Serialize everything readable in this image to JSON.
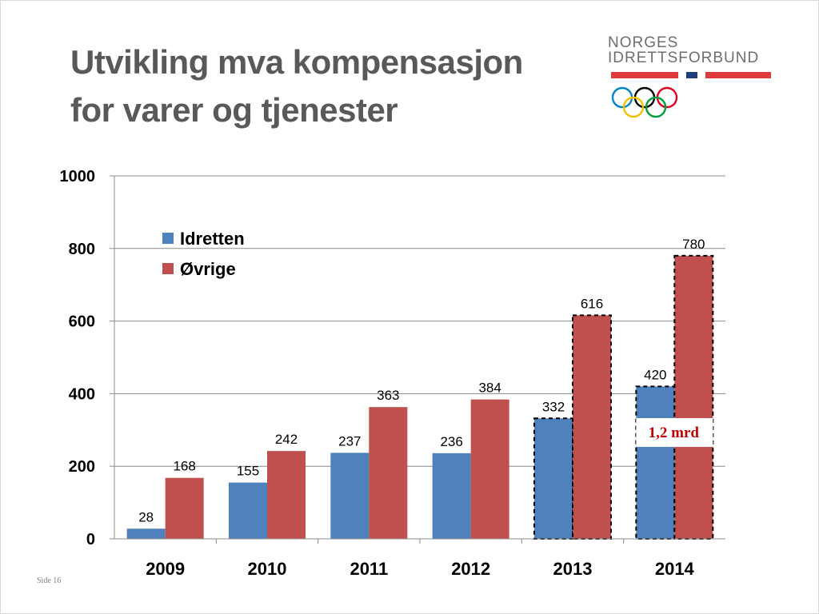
{
  "slide": {
    "title_lines": [
      "Utvikling mva kompensasjon",
      "for varer og tjenester"
    ],
    "footer": "Side 16"
  },
  "logo": {
    "line1": "NORGES",
    "line2": "IDRETTSFORBUND",
    "stripe_colors": [
      "#e03a3e",
      "#1f3d7a",
      "#e03a3e"
    ],
    "ring_colors": [
      "#0085c7",
      "#000000",
      "#df0024",
      "#f4c300",
      "#009f3d"
    ]
  },
  "chart_data": {
    "type": "bar",
    "categories": [
      "2009",
      "2010",
      "2011",
      "2012",
      "2013",
      "2014"
    ],
    "series": [
      {
        "name": "Idretten",
        "color": "#4f81bd",
        "values": [
          28,
          155,
          237,
          236,
          332,
          420
        ]
      },
      {
        "name": "Øvrige",
        "color": "#c0504d",
        "values": [
          168,
          242,
          363,
          384,
          616,
          780
        ]
      }
    ],
    "ylim": [
      0,
      1000
    ],
    "yticks": [
      "0",
      "200",
      "400",
      "600",
      "800",
      "1000"
    ],
    "grid": true,
    "legend": "top-left",
    "dashed_categories": [
      "2013",
      "2014"
    ],
    "annotation": {
      "text": "1,2 mrd",
      "category": "2014",
      "color": "#c00000"
    }
  }
}
